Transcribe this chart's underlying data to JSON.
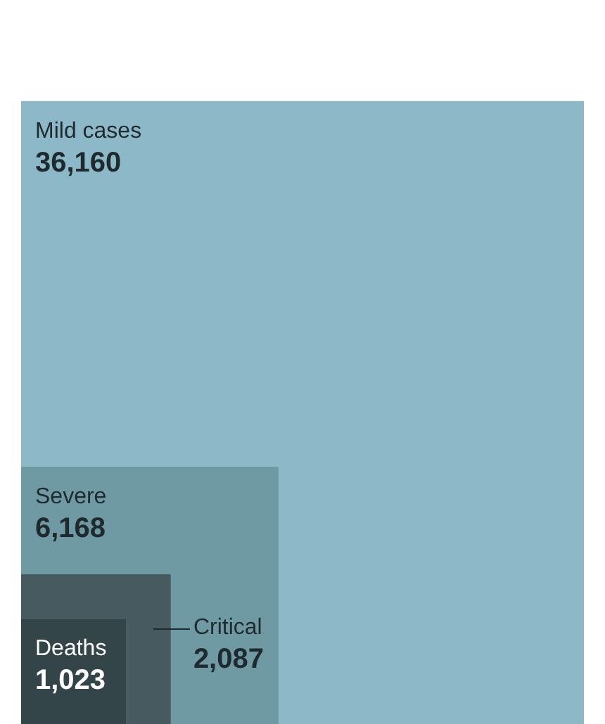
{
  "chart_data": {
    "type": "other",
    "categories": [
      "Mild cases",
      "Severe",
      "Critical",
      "Deaths"
    ],
    "values": [
      36160,
      6168,
      2087,
      1023
    ],
    "colors": [
      "#8db8c8",
      "#6f9aa4",
      "#465a60",
      "#34454a"
    ],
    "value_labels": [
      "36,160",
      "6,168",
      "2,087",
      "1,023"
    ]
  }
}
